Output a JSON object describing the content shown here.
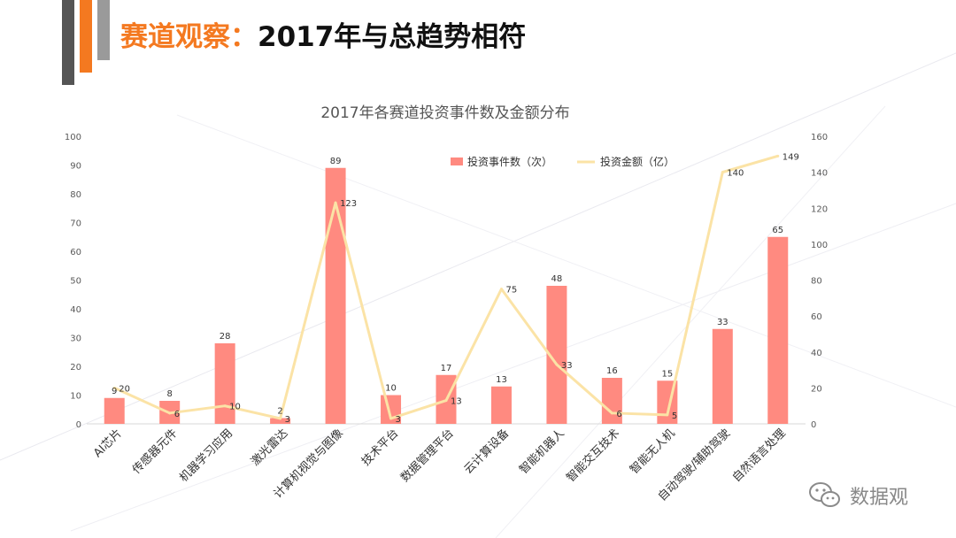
{
  "header": {
    "title_accent": "赛道观察：",
    "title_main": "2017年与总趋势相符"
  },
  "watermark": {
    "text": "数据观",
    "icon": "wechat-icon"
  },
  "colors": {
    "bar": "#ff8a80",
    "line": "#fbe3a6",
    "axis_text": "#595959",
    "title_accent": "#f47920"
  },
  "chart_data": {
    "type": "bar",
    "title": "2017年各赛道投资事件数及金额分布",
    "categories": [
      "AI芯片",
      "传感器元件",
      "机器学习应用",
      "激光雷达",
      "计算机视觉与图像",
      "技术平台",
      "数据管理平台",
      "云计算设备",
      "智能机器人",
      "智能交互技术",
      "智能无人机",
      "自动驾驶/辅助驾驶",
      "自然语言处理"
    ],
    "series": [
      {
        "name": "投资事件数（次）",
        "type": "bar",
        "axis": "left",
        "values": [
          9,
          8,
          28,
          2,
          89,
          10,
          17,
          13,
          48,
          16,
          15,
          33,
          65
        ]
      },
      {
        "name": "投资金额（亿）",
        "type": "line",
        "axis": "right",
        "values": [
          20,
          6,
          10,
          3,
          123,
          3,
          13,
          75,
          33,
          6,
          5,
          140,
          149
        ]
      }
    ],
    "y_left": {
      "min": 0,
      "max": 100,
      "ticks": [
        0,
        10,
        20,
        30,
        40,
        50,
        60,
        70,
        80,
        90,
        100
      ]
    },
    "y_right": {
      "min": 0,
      "max": 160,
      "ticks": [
        0,
        20,
        40,
        60,
        80,
        100,
        120,
        140,
        160
      ]
    },
    "grid": false,
    "legend_position": "top-right"
  }
}
